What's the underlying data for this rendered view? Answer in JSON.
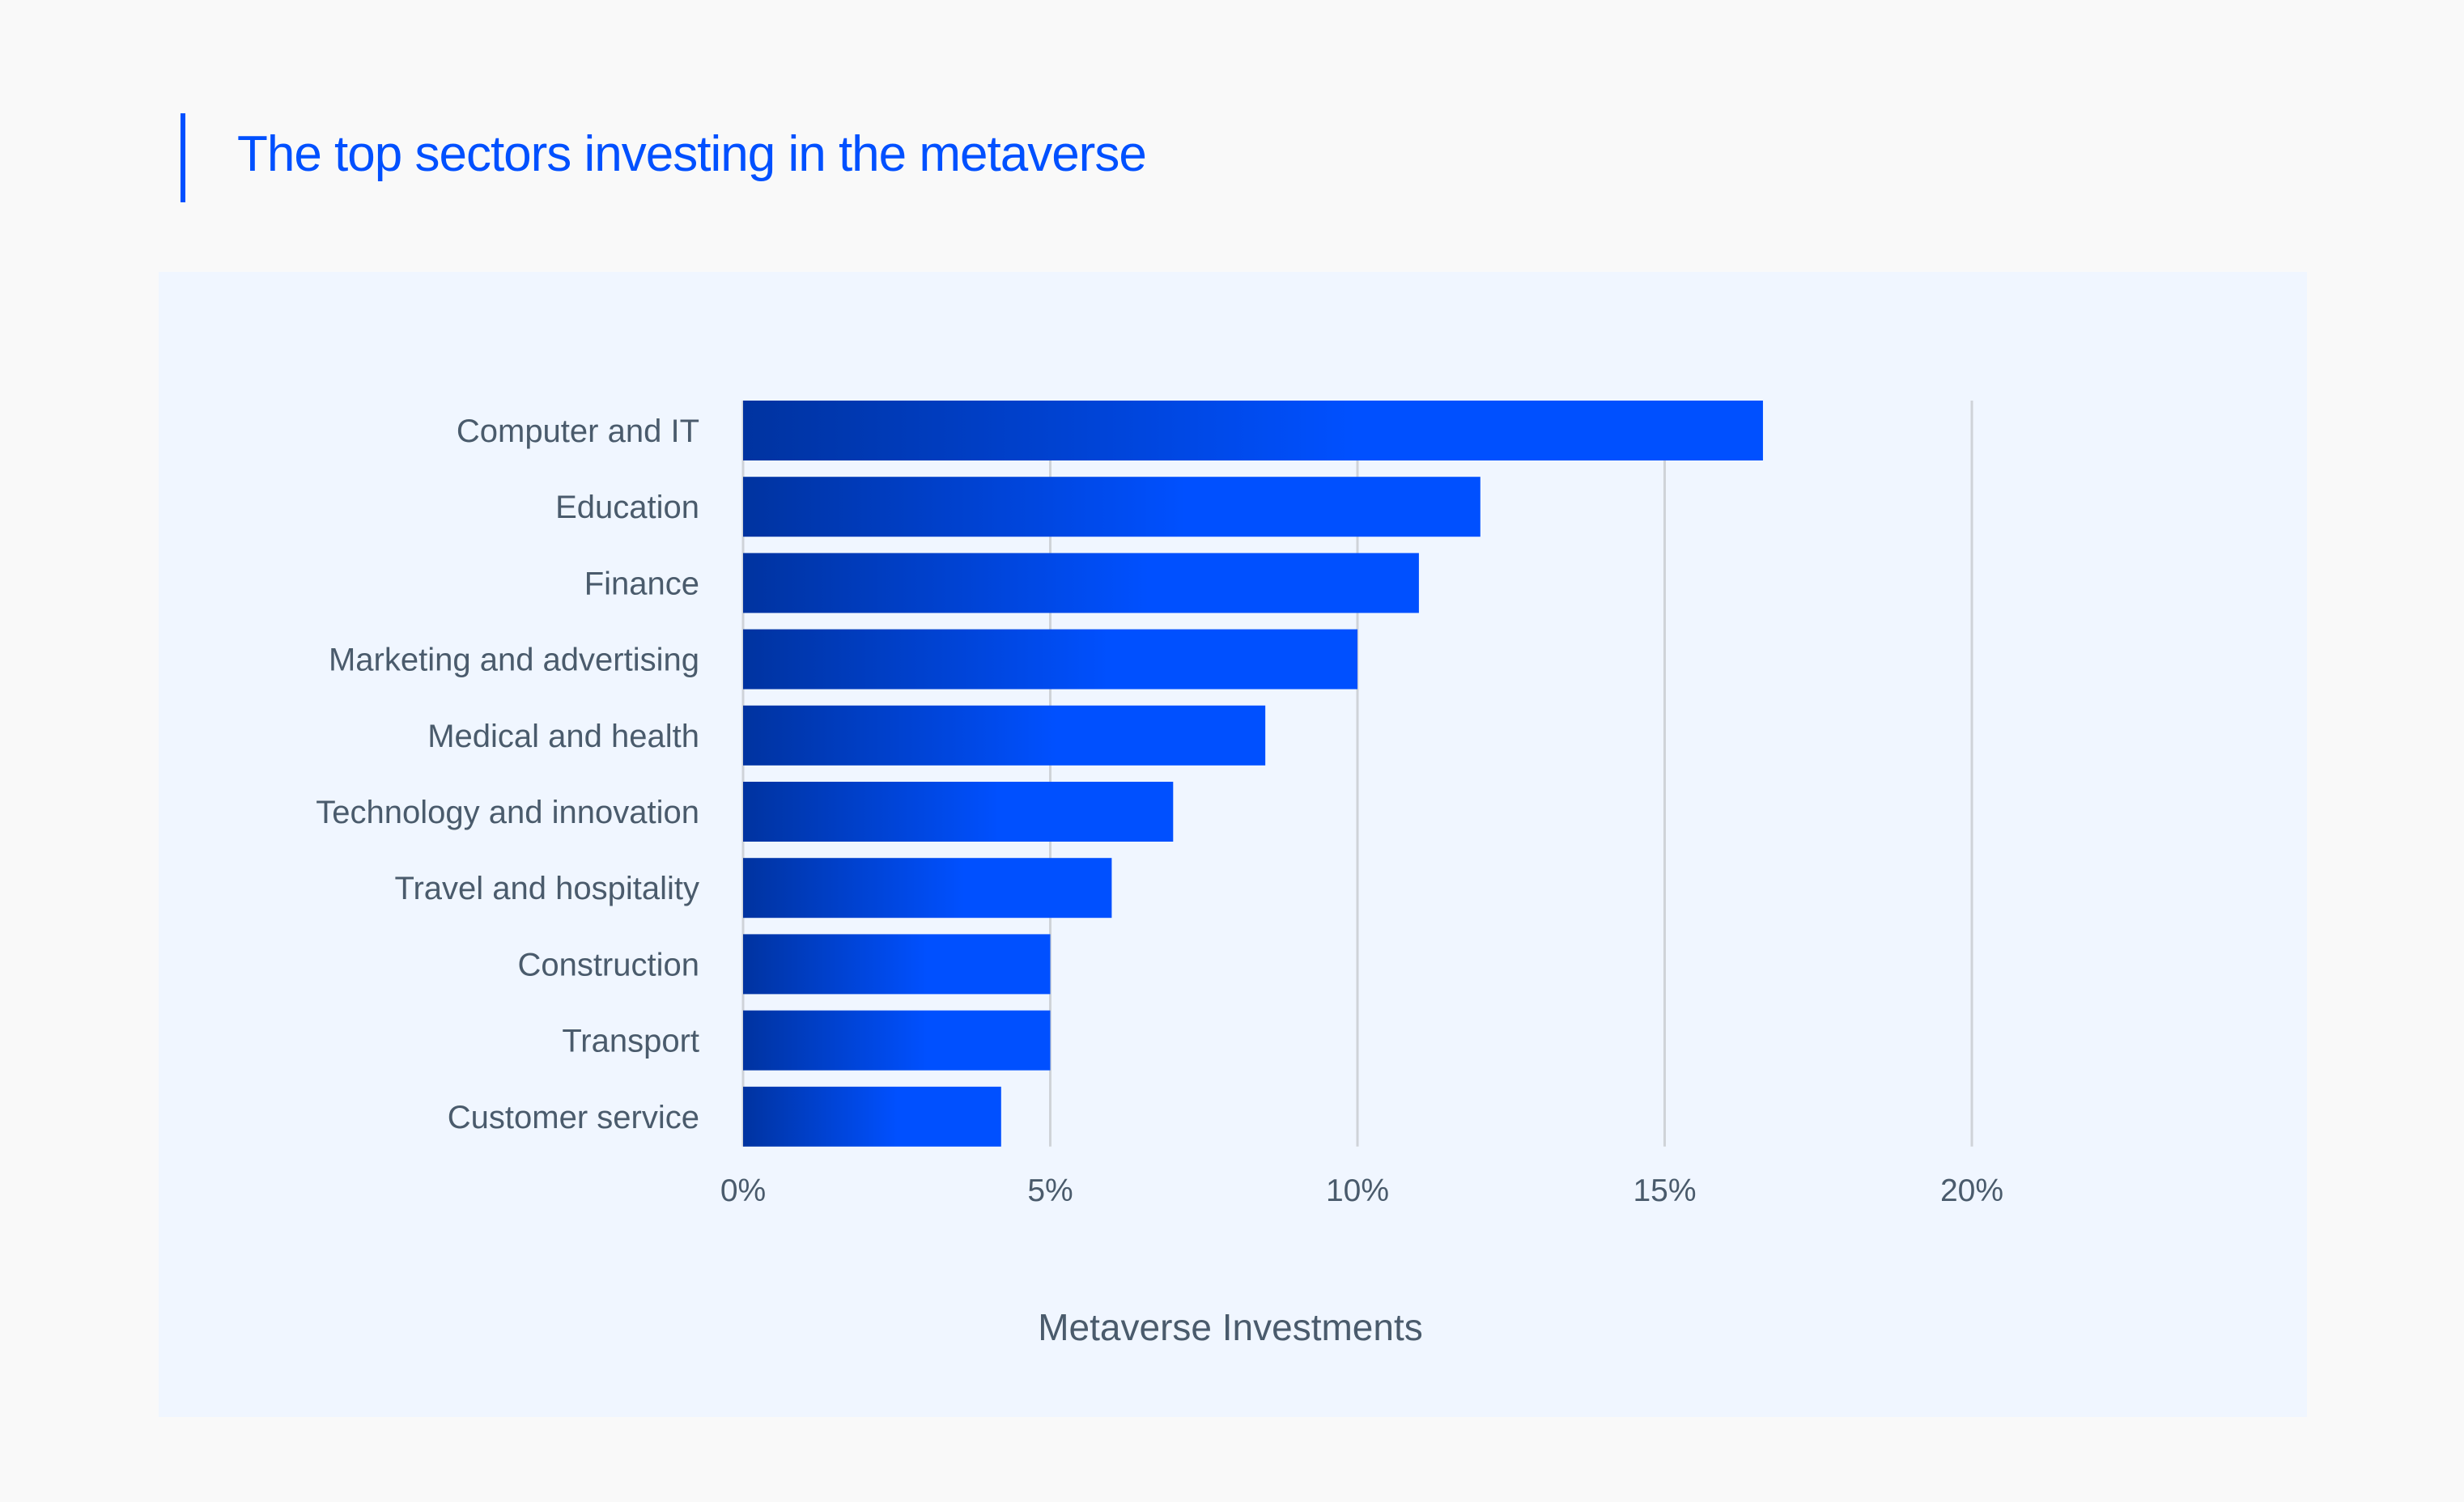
{
  "header": {
    "title": "The top sectors investing in the metaverse"
  },
  "colors": {
    "accent": "#0050ff",
    "bar_start": "#0033a0",
    "bar_end": "#0050ff",
    "panel": "#f0f6ff",
    "text": "#4a5b6c",
    "grid": "#cfd3d8"
  },
  "chart_data": {
    "type": "bar",
    "orientation": "horizontal",
    "title": "The top sectors investing in the metaverse",
    "xlabel": "Metaverse Investments",
    "ylabel": "",
    "categories": [
      "Computer and IT",
      "Education",
      "Finance",
      "Marketing and advertising",
      "Medical and health",
      "Technology and innovation",
      "Travel and hospitality",
      "Construction",
      "Transport",
      "Customer service"
    ],
    "values": [
      16.6,
      12.0,
      11.0,
      10.0,
      8.5,
      7.0,
      6.0,
      5.0,
      5.0,
      4.2
    ],
    "unit": "%",
    "xlim": [
      0,
      20
    ],
    "xticks": [
      0,
      5,
      10,
      15,
      20
    ],
    "xtick_labels": [
      "0%",
      "5%",
      "10%",
      "15%",
      "20%"
    ],
    "grid": "vertical",
    "bar_fill": "horizontal gradient dark-to-bright blue"
  }
}
